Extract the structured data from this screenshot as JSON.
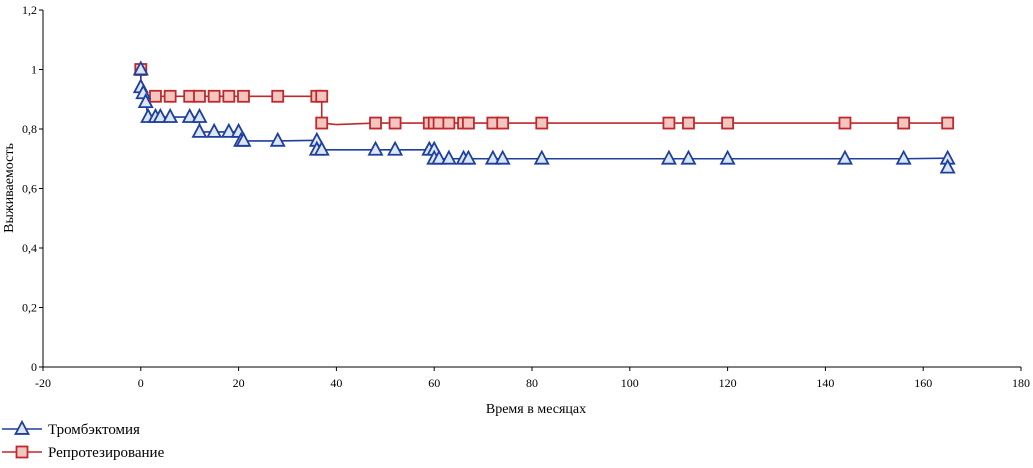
{
  "chart_data": {
    "type": "line",
    "title": "",
    "xlabel": "Время в месяцах",
    "ylabel": "Выживаемость",
    "xlim": [
      -20,
      180
    ],
    "ylim": [
      0,
      1.2
    ],
    "x_ticks": [
      -20,
      0,
      20,
      40,
      60,
      80,
      100,
      120,
      140,
      160,
      180
    ],
    "x_tick_labels": [
      "-20",
      "0",
      "20",
      "40",
      "60",
      "80",
      "100",
      "120",
      "140",
      "160",
      "180"
    ],
    "y_ticks": [
      0,
      0.2,
      0.4,
      0.6,
      0.8,
      1.0,
      1.2
    ],
    "y_tick_labels": [
      "0",
      "0,2",
      "0,4",
      "0,6",
      "0,8",
      "1",
      "1,2"
    ],
    "grid": false,
    "legend_position": "bottom-left",
    "series": [
      {
        "name": "Тромбэктомия",
        "color": "#1f3f9e",
        "marker": "triangle",
        "marker_fill": "#dbe6f7",
        "line": [
          [
            0,
            1
          ],
          [
            0,
            0.94
          ],
          [
            0.5,
            0.92
          ],
          [
            0.7,
            0.9
          ],
          [
            1,
            0.89
          ],
          [
            1.5,
            0.84
          ],
          [
            2,
            0.84
          ],
          [
            3,
            0.84
          ],
          [
            4,
            0.84
          ],
          [
            6,
            0.84
          ],
          [
            8,
            0.84
          ],
          [
            10,
            0.84
          ],
          [
            12,
            0.84
          ],
          [
            12,
            0.79
          ],
          [
            15,
            0.79
          ],
          [
            18,
            0.79
          ],
          [
            20,
            0.79
          ],
          [
            20,
            0.76
          ],
          [
            21,
            0.76
          ],
          [
            28,
            0.76
          ],
          [
            36,
            0.762
          ],
          [
            36,
            0.73
          ],
          [
            37,
            0.73
          ],
          [
            48,
            0.73
          ],
          [
            52,
            0.73
          ],
          [
            59,
            0.73
          ],
          [
            60,
            0.73
          ],
          [
            60,
            0.7
          ],
          [
            61,
            0.7
          ],
          [
            63,
            0.7
          ],
          [
            66,
            0.7
          ],
          [
            67,
            0.7
          ],
          [
            72,
            0.7
          ],
          [
            74,
            0.7
          ],
          [
            82,
            0.7
          ],
          [
            108,
            0.7
          ],
          [
            112,
            0.7
          ],
          [
            120,
            0.7
          ],
          [
            144,
            0.7
          ],
          [
            156,
            0.7
          ],
          [
            165,
            0.702
          ]
        ],
        "points": [
          [
            0,
            1.0
          ],
          [
            0,
            0.94
          ],
          [
            0.5,
            0.92
          ],
          [
            1,
            0.89
          ],
          [
            1.5,
            0.84
          ],
          [
            3,
            0.84
          ],
          [
            4,
            0.84
          ],
          [
            6,
            0.84
          ],
          [
            10,
            0.84
          ],
          [
            12,
            0.84
          ],
          [
            12,
            0.79
          ],
          [
            15,
            0.79
          ],
          [
            18,
            0.79
          ],
          [
            20,
            0.79
          ],
          [
            20.5,
            0.76
          ],
          [
            21,
            0.76
          ],
          [
            28,
            0.76
          ],
          [
            36,
            0.76
          ],
          [
            36,
            0.73
          ],
          [
            37,
            0.73
          ],
          [
            48,
            0.73
          ],
          [
            52,
            0.73
          ],
          [
            59,
            0.73
          ],
          [
            60,
            0.73
          ],
          [
            60,
            0.7
          ],
          [
            61,
            0.7
          ],
          [
            63,
            0.7
          ],
          [
            66,
            0.7
          ],
          [
            67,
            0.7
          ],
          [
            72,
            0.7
          ],
          [
            74,
            0.7
          ],
          [
            82,
            0.7
          ],
          [
            108,
            0.7
          ],
          [
            112,
            0.7
          ],
          [
            120,
            0.7
          ],
          [
            144,
            0.7
          ],
          [
            156,
            0.7
          ],
          [
            165,
            0.7
          ],
          [
            165,
            0.67
          ]
        ]
      },
      {
        "name": "Репротезирование",
        "color": "#c0282d",
        "marker": "square",
        "marker_fill": "#f4c6c0",
        "line": [
          [
            0,
            1
          ],
          [
            0,
            0.91
          ],
          [
            3,
            0.91
          ],
          [
            6,
            0.91
          ],
          [
            10,
            0.91
          ],
          [
            12,
            0.91
          ],
          [
            15,
            0.91
          ],
          [
            18,
            0.91
          ],
          [
            20,
            0.91
          ],
          [
            21,
            0.91
          ],
          [
            28,
            0.91
          ],
          [
            36,
            0.91
          ],
          [
            37,
            0.91
          ],
          [
            37,
            0.86
          ],
          [
            37,
            0.82
          ],
          [
            40,
            0.815
          ],
          [
            48,
            0.82
          ],
          [
            52,
            0.82
          ],
          [
            59,
            0.82
          ],
          [
            60,
            0.82
          ],
          [
            61,
            0.82
          ],
          [
            63,
            0.82
          ],
          [
            66,
            0.82
          ],
          [
            67,
            0.82
          ],
          [
            72,
            0.82
          ],
          [
            74,
            0.82
          ],
          [
            82,
            0.82
          ],
          [
            108,
            0.82
          ],
          [
            112,
            0.82
          ],
          [
            120,
            0.82
          ],
          [
            144,
            0.82
          ],
          [
            156,
            0.82
          ],
          [
            165,
            0.82
          ]
        ],
        "points": [
          [
            0,
            1.0
          ],
          [
            3,
            0.91
          ],
          [
            6,
            0.91
          ],
          [
            10,
            0.91
          ],
          [
            12,
            0.91
          ],
          [
            15,
            0.91
          ],
          [
            18,
            0.91
          ],
          [
            21,
            0.91
          ],
          [
            28,
            0.91
          ],
          [
            36,
            0.91
          ],
          [
            37,
            0.91
          ],
          [
            37,
            0.82
          ],
          [
            48,
            0.82
          ],
          [
            52,
            0.82
          ],
          [
            59,
            0.82
          ],
          [
            60,
            0.82
          ],
          [
            61,
            0.82
          ],
          [
            63,
            0.82
          ],
          [
            66,
            0.82
          ],
          [
            67,
            0.82
          ],
          [
            72,
            0.82
          ],
          [
            74,
            0.82
          ],
          [
            82,
            0.82
          ],
          [
            108,
            0.82
          ],
          [
            112,
            0.82
          ],
          [
            120,
            0.82
          ],
          [
            144,
            0.82
          ],
          [
            156,
            0.82
          ],
          [
            165,
            0.82
          ]
        ]
      }
    ]
  }
}
